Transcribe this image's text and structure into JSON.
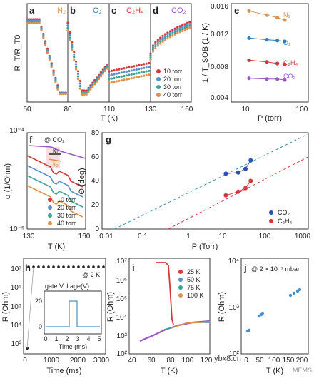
{
  "colors": {
    "series": [
      "#d6383a",
      "#5a8fc7",
      "#3aa39a",
      "#e0904a"
    ],
    "N2": "#e0904a",
    "O2": "#2f7fbf",
    "C2H4": "#d6383a",
    "CO2": "#9b59c6",
    "CO2_blue": "#2a4fb0",
    "C2H4_red": "#d6383a",
    "highlight": "#f2c8c8"
  },
  "panels": {
    "a": {
      "label": "a",
      "gas": "N₂"
    },
    "b": {
      "label": "b",
      "gas": "O₂"
    },
    "c": {
      "label": "c",
      "gas": "C₂H₄"
    },
    "d": {
      "label": "d",
      "gas": "CO₂"
    },
    "e": {
      "label": "e"
    },
    "f": {
      "label": "f"
    },
    "g": {
      "label": "g"
    },
    "h": {
      "label": "h"
    },
    "i": {
      "label": "i"
    },
    "j": {
      "label": "j"
    }
  },
  "row1": {
    "ylabel": "R_T/R_T0",
    "xlabel": "T (K)",
    "xticks": [
      "50",
      "80",
      "110",
      "130",
      "160"
    ],
    "legend": [
      "10 torr",
      "20 torr",
      "30 torr",
      "40 torr"
    ]
  },
  "e": {
    "ylabel": "1 / T_SOB (1 / K)",
    "xlabel": "P (torr)",
    "yticks": [
      "0.016",
      "0.012",
      "0.008",
      "0.004"
    ],
    "xticks": [
      "10",
      "100"
    ],
    "labels": {
      "N2": "N₂",
      "O2": "O₂",
      "C2H4": "C₂H₄",
      "CO2": "CO₂"
    }
  },
  "f": {
    "ylabel": "σ (1/Ohm)",
    "xlabel": "T (K)",
    "annot": "@ CO₂",
    "k1": "k₁",
    "k2": "k₂",
    "ytop": "10⁻⁴",
    "ybot": "10⁻⁵",
    "xticks": [
      "130",
      "160"
    ],
    "legend": [
      "10 torr",
      "20 torr",
      "30 torr",
      "40 torr"
    ]
  },
  "g": {
    "ylabel": "Θ (deg)",
    "xlabel": "P (Torr)",
    "yticks": [
      "0",
      "20",
      "40",
      "60",
      "80"
    ],
    "xticks": [
      "0.01",
      "0.1",
      "1",
      "10",
      "100",
      "1000"
    ],
    "legend": [
      "CO₂",
      "C₂H₄"
    ]
  },
  "h": {
    "ylabel": "R (Ohm)",
    "xlabel": "Time (ms)",
    "annot": "@ 2 K",
    "yticks": [
      "10⁷",
      "10⁶",
      "10⁵",
      "10⁴",
      "10³"
    ],
    "xticks": [
      "0",
      "1000",
      "2000",
      "3000"
    ],
    "inset_title": "gate Voltage(V)",
    "inset_xlabel": "Time (ms)",
    "inset_ytick": "20",
    "inset_yzero": "0",
    "inset_xticks": [
      "0",
      "1",
      "2",
      "3",
      "4",
      "5"
    ]
  },
  "i": {
    "ylabel": "R (Ohm)",
    "xlabel": "T (K)",
    "yticks": [
      "10⁷",
      "10⁶",
      "10⁵",
      "10⁴",
      "10³",
      "10²"
    ],
    "xticks": [
      "40",
      "60",
      "80",
      "100",
      "120"
    ],
    "legend": [
      "25 K",
      "50 K",
      "75 K",
      "100 K"
    ]
  },
  "j": {
    "ylabel": "R (Ohm)",
    "xlabel": "T (K)",
    "annot": "@ 2 × 10⁻⁷ mbar",
    "yticks": [
      "10⁴",
      "10³",
      "10²"
    ],
    "xticks": [
      "0",
      "50",
      "100",
      "150",
      "200"
    ]
  },
  "watermark": "ybx8.cn",
  "watermark2": "MEMS",
  "chart_data": [
    {
      "type": "scatter",
      "panel": "g",
      "xscale": "log",
      "xlim": [
        0.01,
        1000
      ],
      "ylim": [
        0,
        80
      ],
      "xlabel": "P (Torr)",
      "ylabel": "Θ (deg)",
      "series": [
        {
          "name": "CO₂",
          "x": [
            10,
            20,
            30,
            40
          ],
          "y": [
            46,
            47,
            50,
            57
          ]
        },
        {
          "name": "C₂H₄",
          "x": [
            10,
            20,
            30,
            40
          ],
          "y": [
            28,
            31,
            34,
            40
          ]
        }
      ]
    },
    {
      "type": "line",
      "panel": "e",
      "xscale": "log",
      "xlim": [
        5,
        100
      ],
      "ylim": [
        0.004,
        0.016
      ],
      "xlabel": "P (torr)",
      "ylabel": "1 / T_SOB (1 / K)",
      "series": [
        {
          "name": "N₂",
          "x": [
            10,
            20,
            30,
            40
          ],
          "y": [
            0.0151,
            0.0146,
            0.0143,
            0.014
          ]
        },
        {
          "name": "O₂",
          "x": [
            10,
            20,
            30,
            40
          ],
          "y": [
            0.0118,
            0.0116,
            0.0115,
            0.0114
          ]
        },
        {
          "name": "C₂H₄",
          "x": [
            10,
            20,
            30,
            40
          ],
          "y": [
            0.0091,
            0.0089,
            0.0087,
            0.0086
          ]
        },
        {
          "name": "CO₂",
          "x": [
            10,
            20,
            30,
            40
          ],
          "y": [
            0.0069,
            0.0068,
            0.0068,
            0.0067
          ]
        }
      ]
    }
  ]
}
